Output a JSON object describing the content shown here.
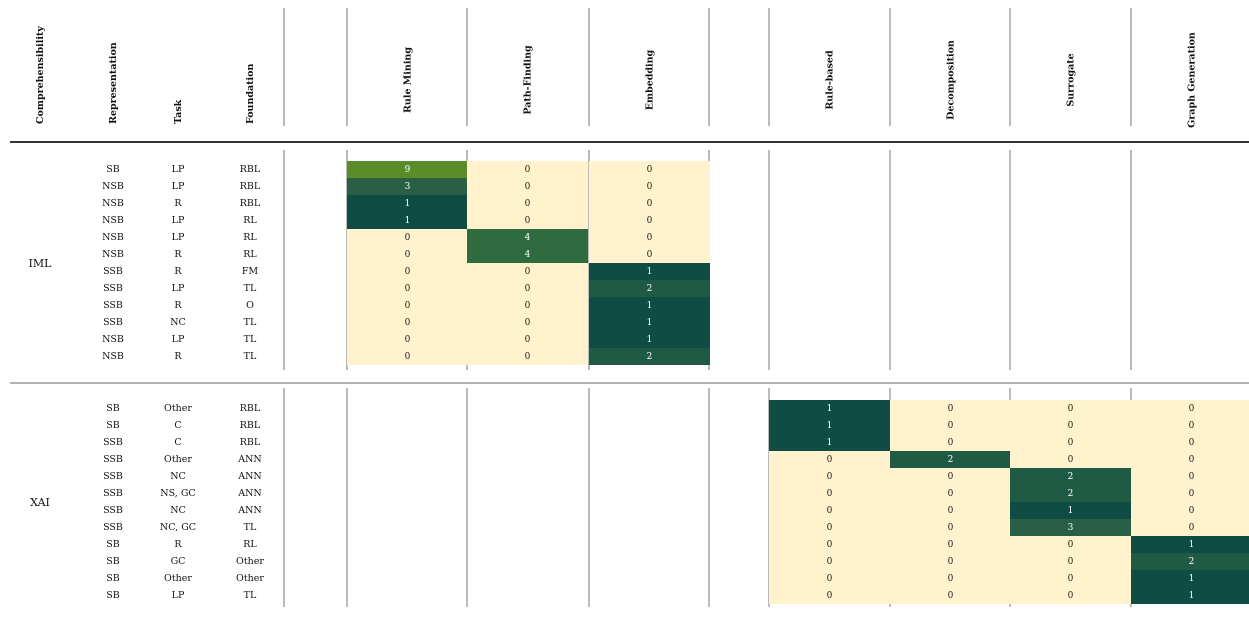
{
  "chart_data": {
    "type": "heatmap",
    "row_header_labels": [
      "Comprehensibility",
      "Representation",
      "Task",
      "Foundation"
    ],
    "columns": [
      "Rule Mining",
      "Path-Finding",
      "Embedding",
      "Rule-based",
      "Decomposition",
      "Surrogate",
      "Graph Generation"
    ],
    "groups": [
      {
        "name": "IML",
        "cols": [
          0,
          1,
          2
        ],
        "rows": [
          {
            "rep": "SB",
            "task": "LP",
            "found": "RBL",
            "values": [
              9,
              0,
              0
            ]
          },
          {
            "rep": "NSB",
            "task": "LP",
            "found": "RBL",
            "values": [
              3,
              0,
              0
            ]
          },
          {
            "rep": "NSB",
            "task": "R",
            "found": "RBL",
            "values": [
              1,
              0,
              0
            ]
          },
          {
            "rep": "NSB",
            "task": "LP",
            "found": "RL",
            "values": [
              1,
              0,
              0
            ]
          },
          {
            "rep": "NSB",
            "task": "LP",
            "found": "RL",
            "values": [
              0,
              4,
              0
            ]
          },
          {
            "rep": "NSB",
            "task": "R",
            "found": "RL",
            "values": [
              0,
              4,
              0
            ]
          },
          {
            "rep": "SSB",
            "task": "R",
            "found": "FM",
            "values": [
              0,
              0,
              1
            ]
          },
          {
            "rep": "SSB",
            "task": "LP",
            "found": "TL",
            "values": [
              0,
              0,
              2
            ]
          },
          {
            "rep": "SSB",
            "task": "R",
            "found": "O",
            "values": [
              0,
              0,
              1
            ]
          },
          {
            "rep": "SSB",
            "task": "NC",
            "found": "TL",
            "values": [
              0,
              0,
              1
            ]
          },
          {
            "rep": "NSB",
            "task": "LP",
            "found": "TL",
            "values": [
              0,
              0,
              1
            ]
          },
          {
            "rep": "NSB",
            "task": "R",
            "found": "TL",
            "values": [
              0,
              0,
              2
            ]
          }
        ]
      },
      {
        "name": "XAI",
        "cols": [
          3,
          4,
          5,
          6
        ],
        "rows": [
          {
            "rep": "SB",
            "task": "Other",
            "found": "RBL",
            "values": [
              1,
              0,
              0,
              0
            ]
          },
          {
            "rep": "SB",
            "task": "C",
            "found": "RBL",
            "values": [
              1,
              0,
              0,
              0
            ]
          },
          {
            "rep": "SSB",
            "task": "C",
            "found": "RBL",
            "values": [
              1,
              0,
              0,
              0
            ]
          },
          {
            "rep": "SSB",
            "task": "Other",
            "found": "ANN",
            "values": [
              0,
              2,
              0,
              0
            ]
          },
          {
            "rep": "SSB",
            "task": "NC",
            "found": "ANN",
            "values": [
              0,
              0,
              2,
              0
            ]
          },
          {
            "rep": "SSB",
            "task": "NS, GC",
            "found": "ANN",
            "values": [
              0,
              0,
              2,
              0
            ]
          },
          {
            "rep": "SSB",
            "task": "NC",
            "found": "ANN",
            "values": [
              0,
              0,
              1,
              0
            ]
          },
          {
            "rep": "SSB",
            "task": "NC, GC",
            "found": "TL",
            "values": [
              0,
              0,
              3,
              0
            ]
          },
          {
            "rep": "SB",
            "task": "R",
            "found": "RL",
            "values": [
              0,
              0,
              0,
              1
            ]
          },
          {
            "rep": "SB",
            "task": "GC",
            "found": "Other",
            "values": [
              0,
              0,
              0,
              2
            ]
          },
          {
            "rep": "SB",
            "task": "Other",
            "found": "Other",
            "values": [
              0,
              0,
              0,
              1
            ]
          },
          {
            "rep": "SB",
            "task": "LP",
            "found": "TL",
            "values": [
              0,
              0,
              0,
              1
            ]
          }
        ]
      }
    ],
    "colors": {
      "zero": "#fff2cc",
      "one": "#0f4d44",
      "two": "#1f5a45",
      "three": "#285f46",
      "four": "#2e6b3f",
      "nine": "#5b8c2a",
      "line": "#333333",
      "text_on_dark": "#ffffff",
      "text_on_light": "#222222"
    }
  }
}
